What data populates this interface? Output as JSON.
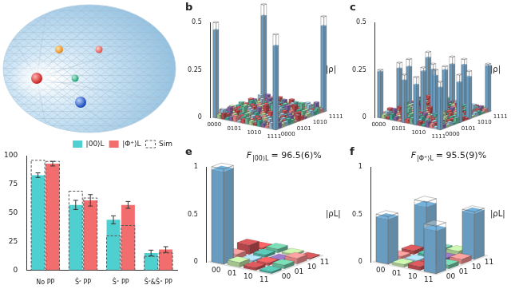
{
  "chart_data": [
    {
      "type": "bar",
      "categories": [
        "No PP",
        "Ŝᶻ PP",
        "Ŝˣ PP",
        "Ŝᶻ&Ŝˣ PP"
      ],
      "series": [
        {
          "name": "|00⟩L",
          "color": "#4fcfcf",
          "values": [
            83,
            57,
            44,
            15
          ],
          "errors": [
            2,
            4,
            3.5,
            2.5
          ],
          "sim": [
            96,
            69,
            30,
            12
          ]
        },
        {
          "name": "|Φ⁺⟩L",
          "color": "#f26d6d",
          "values": [
            93,
            61,
            57,
            18
          ],
          "errors": [
            2,
            5,
            3,
            2.5
          ],
          "sim": [
            95,
            63,
            39,
            15
          ]
        }
      ],
      "sim_label": "Sim",
      "ylim": [
        0,
        100
      ],
      "yticks": [
        0,
        25,
        50,
        75,
        100
      ],
      "grid": false,
      "legend": "upper right"
    },
    {
      "type": "bar3d",
      "title": "b",
      "y_label": "|ρ|",
      "categories": [
        "0000",
        null,
        null,
        null,
        null,
        "0101",
        null,
        null,
        null,
        null,
        "1010",
        null,
        null,
        null,
        null,
        "1111"
      ],
      "ylim": [
        0,
        0.5
      ],
      "yticks": [
        0,
        0.25,
        0.5
      ],
      "values": [
        [
          0.46,
          0.02,
          0.03,
          0.01,
          0.02,
          0.03,
          0.01,
          0.02,
          0.03,
          0.02,
          0.01,
          0.03,
          0.02,
          0.01,
          0.03,
          0.44
        ],
        [
          0.02,
          0.04,
          0.02,
          0.01,
          0.03,
          0.01,
          0.02,
          0.01,
          0.02,
          0.01,
          0.03,
          0.02,
          0.01,
          0.02,
          0.01,
          0.03
        ],
        [
          0.03,
          0.02,
          0.05,
          0.02,
          0.01,
          0.02,
          0.03,
          0.01,
          0.01,
          0.02,
          0.01,
          0.02,
          0.03,
          0.01,
          0.02,
          0.02
        ],
        [
          0.01,
          0.01,
          0.02,
          0.03,
          0.02,
          0.01,
          0.01,
          0.02,
          0.02,
          0.01,
          0.02,
          0.01,
          0.01,
          0.03,
          0.01,
          0.02
        ],
        [
          0.02,
          0.03,
          0.01,
          0.02,
          0.05,
          0.02,
          0.01,
          0.03,
          0.01,
          0.02,
          0.02,
          0.01,
          0.02,
          0.01,
          0.02,
          0.03
        ],
        [
          0.03,
          0.01,
          0.02,
          0.01,
          0.02,
          0.03,
          0.02,
          0.01,
          0.02,
          0.01,
          0.01,
          0.02,
          0.01,
          0.02,
          0.01,
          0.02
        ],
        [
          0.01,
          0.02,
          0.03,
          0.01,
          0.01,
          0.02,
          0.04,
          0.02,
          0.01,
          0.03,
          0.02,
          0.01,
          0.02,
          0.01,
          0.03,
          0.01
        ],
        [
          0.02,
          0.01,
          0.01,
          0.02,
          0.03,
          0.01,
          0.02,
          0.05,
          0.02,
          0.01,
          0.01,
          0.02,
          0.01,
          0.02,
          0.01,
          0.03
        ],
        [
          0.03,
          0.02,
          0.01,
          0.02,
          0.01,
          0.02,
          0.01,
          0.02,
          0.05,
          0.02,
          0.01,
          0.01,
          0.02,
          0.01,
          0.02,
          0.02
        ],
        [
          0.02,
          0.01,
          0.02,
          0.01,
          0.02,
          0.01,
          0.03,
          0.01,
          0.02,
          0.03,
          0.02,
          0.01,
          0.01,
          0.02,
          0.01,
          0.01
        ],
        [
          0.01,
          0.03,
          0.01,
          0.02,
          0.02,
          0.01,
          0.02,
          0.01,
          0.01,
          0.02,
          0.04,
          0.02,
          0.01,
          0.02,
          0.03,
          0.02
        ],
        [
          0.03,
          0.02,
          0.02,
          0.01,
          0.01,
          0.02,
          0.01,
          0.02,
          0.01,
          0.01,
          0.02,
          0.04,
          0.02,
          0.01,
          0.02,
          0.03
        ],
        [
          0.02,
          0.01,
          0.03,
          0.01,
          0.02,
          0.01,
          0.02,
          0.01,
          0.02,
          0.01,
          0.01,
          0.02,
          0.05,
          0.02,
          0.01,
          0.02
        ],
        [
          0.01,
          0.02,
          0.01,
          0.03,
          0.01,
          0.02,
          0.01,
          0.02,
          0.01,
          0.02,
          0.02,
          0.01,
          0.02,
          0.04,
          0.02,
          0.03
        ],
        [
          0.03,
          0.01,
          0.02,
          0.01,
          0.02,
          0.01,
          0.03,
          0.01,
          0.02,
          0.01,
          0.03,
          0.02,
          0.01,
          0.02,
          0.05,
          0.02
        ],
        [
          0.44,
          0.03,
          0.02,
          0.02,
          0.03,
          0.02,
          0.01,
          0.03,
          0.02,
          0.01,
          0.02,
          0.03,
          0.02,
          0.03,
          0.02,
          0.45
        ]
      ],
      "ideal": [
        [
          0,
          0,
          0.5
        ],
        [
          0,
          15,
          0.5
        ],
        [
          15,
          0,
          0.5
        ],
        [
          15,
          15,
          0.5
        ]
      ]
    },
    {
      "type": "bar3d",
      "title": "c",
      "y_label": "|ρ|",
      "categories": [
        "0000",
        null,
        null,
        null,
        null,
        "0101",
        null,
        null,
        null,
        null,
        "1010",
        null,
        null,
        null,
        null,
        "1111"
      ],
      "ylim": [
        0,
        0.5
      ],
      "yticks": [
        0,
        0.25,
        0.5
      ],
      "values": [
        [
          0.24,
          0.02,
          0.01,
          0.03,
          0.02,
          0.01,
          0.22,
          0.02,
          0.03,
          0.21,
          0.02,
          0.01,
          0.03,
          0.02,
          0.01,
          0.22
        ],
        [
          0.02,
          0.03,
          0.02,
          0.01,
          0.02,
          0.03,
          0.02,
          0.01,
          0.02,
          0.02,
          0.01,
          0.03,
          0.01,
          0.02,
          0.03,
          0.02
        ],
        [
          0.01,
          0.02,
          0.04,
          0.02,
          0.01,
          0.02,
          0.03,
          0.02,
          0.01,
          0.03,
          0.02,
          0.01,
          0.02,
          0.01,
          0.02,
          0.01
        ],
        [
          0.03,
          0.01,
          0.02,
          0.03,
          0.02,
          0.01,
          0.02,
          0.03,
          0.02,
          0.01,
          0.01,
          0.02,
          0.03,
          0.02,
          0.01,
          0.02
        ],
        [
          0.02,
          0.02,
          0.01,
          0.02,
          0.04,
          0.02,
          0.01,
          0.02,
          0.03,
          0.02,
          0.01,
          0.02,
          0.01,
          0.03,
          0.02,
          0.01
        ],
        [
          0.01,
          0.03,
          0.02,
          0.01,
          0.02,
          0.03,
          0.02,
          0.01,
          0.02,
          0.01,
          0.03,
          0.02,
          0.02,
          0.01,
          0.02,
          0.03
        ],
        [
          0.22,
          0.02,
          0.03,
          0.02,
          0.01,
          0.02,
          0.23,
          0.02,
          0.01,
          0.22,
          0.02,
          0.03,
          0.01,
          0.02,
          0.02,
          0.21
        ],
        [
          0.02,
          0.01,
          0.02,
          0.03,
          0.02,
          0.01,
          0.02,
          0.04,
          0.02,
          0.01,
          0.02,
          0.01,
          0.03,
          0.02,
          0.01,
          0.02
        ],
        [
          0.03,
          0.02,
          0.01,
          0.02,
          0.03,
          0.02,
          0.01,
          0.02,
          0.04,
          0.02,
          0.01,
          0.02,
          0.01,
          0.02,
          0.03,
          0.01
        ],
        [
          0.21,
          0.02,
          0.03,
          0.01,
          0.02,
          0.01,
          0.22,
          0.01,
          0.02,
          0.23,
          0.02,
          0.01,
          0.02,
          0.03,
          0.01,
          0.22
        ],
        [
          0.02,
          0.01,
          0.02,
          0.01,
          0.01,
          0.03,
          0.02,
          0.02,
          0.01,
          0.02,
          0.03,
          0.02,
          0.01,
          0.02,
          0.02,
          0.01
        ],
        [
          0.01,
          0.03,
          0.01,
          0.02,
          0.02,
          0.02,
          0.03,
          0.01,
          0.02,
          0.01,
          0.02,
          0.04,
          0.02,
          0.01,
          0.03,
          0.02
        ],
        [
          0.03,
          0.01,
          0.02,
          0.03,
          0.01,
          0.02,
          0.01,
          0.03,
          0.01,
          0.02,
          0.01,
          0.02,
          0.03,
          0.02,
          0.01,
          0.02
        ],
        [
          0.02,
          0.02,
          0.01,
          0.02,
          0.03,
          0.01,
          0.02,
          0.02,
          0.02,
          0.03,
          0.02,
          0.01,
          0.02,
          0.04,
          0.02,
          0.01
        ],
        [
          0.01,
          0.03,
          0.02,
          0.01,
          0.02,
          0.02,
          0.02,
          0.01,
          0.03,
          0.01,
          0.02,
          0.03,
          0.01,
          0.02,
          0.03,
          0.02
        ],
        [
          0.22,
          0.02,
          0.01,
          0.02,
          0.01,
          0.03,
          0.21,
          0.02,
          0.01,
          0.22,
          0.01,
          0.02,
          0.02,
          0.01,
          0.02,
          0.24
        ]
      ],
      "ideal": [
        [
          0,
          0,
          0.25
        ],
        [
          0,
          6,
          0.25
        ],
        [
          0,
          9,
          0.25
        ],
        [
          0,
          15,
          0.25
        ],
        [
          6,
          0,
          0.25
        ],
        [
          6,
          6,
          0.25
        ],
        [
          6,
          9,
          0.25
        ],
        [
          6,
          15,
          0.25
        ],
        [
          9,
          0,
          0.25
        ],
        [
          9,
          6,
          0.25
        ],
        [
          9,
          9,
          0.25
        ],
        [
          9,
          15,
          0.25
        ],
        [
          15,
          0,
          0.25
        ],
        [
          15,
          6,
          0.25
        ],
        [
          15,
          9,
          0.25
        ],
        [
          15,
          15,
          0.25
        ]
      ]
    },
    {
      "type": "bar3d",
      "title": "e",
      "y_label": "|ρL|",
      "categories": [
        "00",
        "01",
        "10",
        "11"
      ],
      "ylim": [
        0,
        1
      ],
      "yticks": [
        0,
        0.5,
        1
      ],
      "values": [
        [
          0.97,
          0.05,
          0.1,
          0.02
        ],
        [
          0.05,
          0.02,
          0.03,
          0.04
        ],
        [
          0.03,
          0.03,
          0.01,
          0.02
        ],
        [
          0.02,
          0.04,
          0.06,
          0.01
        ]
      ],
      "ideal": [
        [
          0,
          0,
          1
        ]
      ],
      "annotation": {
        "symbol": "F",
        "subscript": "|00⟩L",
        "text": "= 96.5(6)%"
      }
    },
    {
      "type": "bar3d",
      "title": "f",
      "y_label": "|ρL|",
      "categories": [
        "00",
        "01",
        "10",
        "11"
      ],
      "ylim": [
        0,
        1
      ],
      "yticks": [
        0,
        0.5,
        1
      ],
      "values": [
        [
          0.47,
          0.03,
          0.04,
          0.45
        ],
        [
          0.03,
          0.02,
          0.03,
          0.04
        ],
        [
          0.04,
          0.03,
          0.03,
          0.05
        ],
        [
          0.45,
          0.04,
          0.05,
          0.48
        ]
      ],
      "ideal": [
        [
          0,
          0,
          0.5
        ],
        [
          0,
          3,
          0.5
        ],
        [
          3,
          0,
          0.5
        ],
        [
          3,
          3,
          0.5
        ]
      ],
      "annotation": {
        "symbol": "F",
        "subscript": "|Φ⁺⟩L",
        "text": "= 95.5(9)%"
      }
    }
  ]
}
